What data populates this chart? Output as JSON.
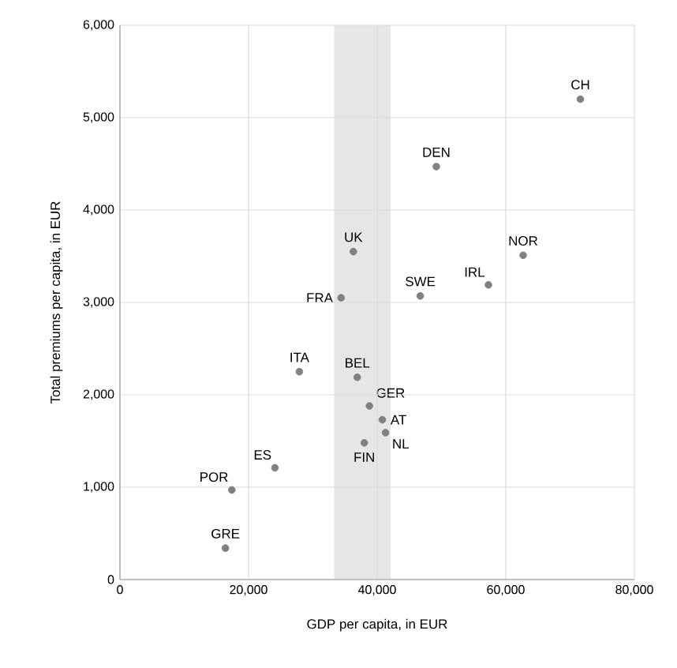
{
  "chart_data": {
    "type": "scatter",
    "xlabel": "GDP per capita, in EUR",
    "ylabel": "Total premiums per capita, in EUR",
    "x": [
      71600,
      49200,
      36300,
      62700,
      57300,
      46700,
      34400,
      27900,
      36900,
      38800,
      40800,
      41300,
      38000,
      24100,
      17400,
      16400
    ],
    "values": [
      5200,
      4470,
      3550,
      3510,
      3190,
      3070,
      3050,
      2250,
      2190,
      1880,
      1730,
      1590,
      1480,
      1210,
      970,
      340
    ],
    "color": "#808080",
    "marker": "circle",
    "grid": true,
    "xlim": [
      0,
      80000
    ],
    "ylim": [
      0,
      6000
    ],
    "xticks": [
      0,
      {
        "value": 20000,
        "label": "20,000"
      },
      {
        "value": 40000,
        "label": "40,000"
      },
      {
        "value": 60000,
        "label": "60,000"
      },
      {
        "value": 80000,
        "label": "80,000"
      }
    ],
    "yticks": [
      0,
      {
        "value": 1000,
        "label": "1,000"
      },
      {
        "value": 2000,
        "label": "2,000"
      },
      {
        "value": 3000,
        "label": "3,000"
      },
      {
        "value": 4000,
        "label": "4,000"
      },
      {
        "value": 5000,
        "label": "5,000"
      },
      {
        "value": 6000,
        "label": "6,000"
      }
    ],
    "bands": [
      {
        "axis": "x",
        "from": 33300,
        "to": 42100,
        "color": "#e6e6e6"
      }
    ],
    "annotations": [
      {
        "text": "CH",
        "x": 71600,
        "y": 5200
      },
      {
        "text": "DEN",
        "x": 49200,
        "y": 4470
      },
      {
        "text": "UK",
        "x": 36300,
        "y": 3550
      },
      {
        "text": "NOR",
        "x": 62700,
        "y": 3510
      },
      {
        "text": "IRL",
        "x": 57300,
        "y": 3190
      },
      {
        "text": "SWE",
        "x": 46700,
        "y": 3070
      },
      {
        "text": "FRA",
        "x": 34400,
        "y": 3050
      },
      {
        "text": "ITA",
        "x": 27900,
        "y": 2250
      },
      {
        "text": "BEL",
        "x": 36900,
        "y": 2190
      },
      {
        "text": "GER",
        "x": 38800,
        "y": 1880
      },
      {
        "text": "AT",
        "x": 40800,
        "y": 1730
      },
      {
        "text": "NL",
        "x": 41300,
        "y": 1590
      },
      {
        "text": "FIN",
        "x": 38000,
        "y": 1480
      },
      {
        "text": "ES",
        "x": 24100,
        "y": 1210
      },
      {
        "text": "POR",
        "x": 17400,
        "y": 970
      },
      {
        "text": "GRE",
        "x": 16400,
        "y": 340
      }
    ]
  }
}
